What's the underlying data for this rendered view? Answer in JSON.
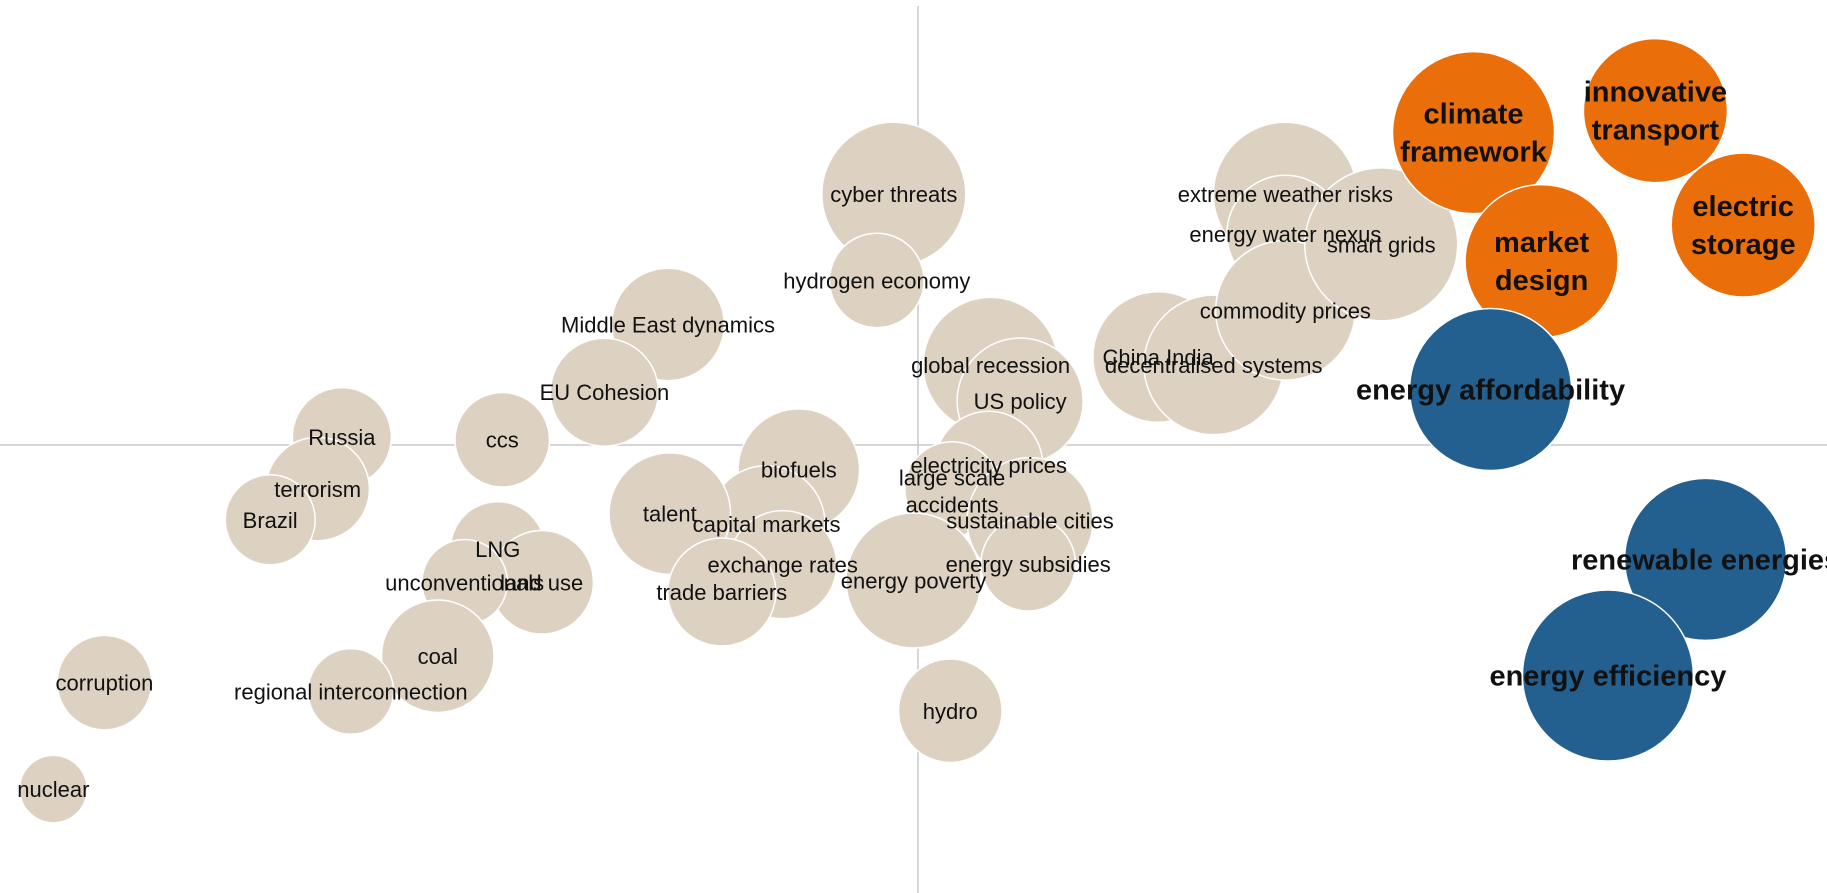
{
  "chart_data": {
    "type": "scatter",
    "title": "",
    "xlabel": "",
    "ylabel": "",
    "xlim": [
      -10,
      10
    ],
    "ylim": [
      -5,
      5
    ],
    "grid": false,
    "legend": "none",
    "colors": {
      "neutral": "#DDD2C2",
      "highlight": "#EA6E0A",
      "focus": "#23608F"
    },
    "points": [
      {
        "label": "cyber threats",
        "x": -0.27,
        "y": 2.85,
        "size": 1.6,
        "group": "neutral"
      },
      {
        "label": "hydrogen economy",
        "x": -0.46,
        "y": 1.87,
        "size": 1.05,
        "group": "neutral"
      },
      {
        "label": "Middle East dynamics",
        "x": -2.79,
        "y": 1.37,
        "size": 1.25,
        "group": "neutral"
      },
      {
        "label": "EU Cohesion",
        "x": -3.5,
        "y": 0.6,
        "size": 1.2,
        "group": "neutral"
      },
      {
        "label": "ccs",
        "x": -4.64,
        "y": 0.06,
        "size": 1.05,
        "group": "neutral"
      },
      {
        "label": "Russia",
        "x": -6.43,
        "y": 0.09,
        "size": 1.1,
        "group": "neutral"
      },
      {
        "label": "terrorism",
        "x": -6.7,
        "y": -0.5,
        "size": 1.15,
        "group": "neutral"
      },
      {
        "label": "Brazil",
        "x": -7.23,
        "y": -0.85,
        "size": 1.0,
        "group": "neutral"
      },
      {
        "label": "biofuels",
        "x": -1.33,
        "y": -0.28,
        "size": 1.35,
        "group": "neutral"
      },
      {
        "label": "capital markets",
        "x": -1.69,
        "y": -0.9,
        "size": 1.3,
        "group": "neutral"
      },
      {
        "label": "talent",
        "x": -2.77,
        "y": -0.78,
        "size": 1.35,
        "group": "neutral"
      },
      {
        "label": "exchange rates",
        "x": -1.51,
        "y": -1.36,
        "size": 1.2,
        "group": "neutral"
      },
      {
        "label": "trade barriers",
        "x": -2.19,
        "y": -1.67,
        "size": 1.2,
        "group": "neutral"
      },
      {
        "label": "LNG",
        "x": -4.69,
        "y": -1.18,
        "size": 1.05,
        "group": "neutral"
      },
      {
        "label": "land use",
        "x": -4.2,
        "y": -1.56,
        "size": 1.15,
        "group": "neutral"
      },
      {
        "label": "unconventionals",
        "x": -5.06,
        "y": -1.56,
        "size": 0.95,
        "group": "neutral"
      },
      {
        "label": "coal",
        "x": -5.36,
        "y": -2.4,
        "size": 1.25,
        "group": "neutral"
      },
      {
        "label": "regional interconnection",
        "x": -6.33,
        "y": -2.8,
        "size": 0.95,
        "group": "neutral"
      },
      {
        "label": "corruption",
        "x": -9.08,
        "y": -2.7,
        "size": 1.05,
        "group": "neutral"
      },
      {
        "label": "nuclear",
        "x": -9.65,
        "y": -3.91,
        "size": 0.75,
        "group": "neutral"
      },
      {
        "label": "global recession",
        "x": 0.81,
        "y": 0.91,
        "size": 1.5,
        "group": "neutral"
      },
      {
        "label": "US policy",
        "x": 1.14,
        "y": 0.5,
        "size": 1.4,
        "group": "neutral"
      },
      {
        "label": "electricity prices",
        "x": 0.79,
        "y": -0.23,
        "size": 1.2,
        "group": "neutral"
      },
      {
        "label": "large scale accidents",
        "x": 0.38,
        "y": -0.5,
        "size": 1.05,
        "group": "neutral"
      },
      {
        "label": "sustainable cities",
        "x": 1.25,
        "y": -0.86,
        "size": 1.4,
        "group": "neutral"
      },
      {
        "label": "energy subsidies",
        "x": 1.23,
        "y": -1.35,
        "size": 1.05,
        "group": "neutral"
      },
      {
        "label": "energy poverty",
        "x": -0.05,
        "y": -1.54,
        "size": 1.5,
        "group": "neutral"
      },
      {
        "label": "hydro",
        "x": 0.36,
        "y": -3.02,
        "size": 1.15,
        "group": "neutral"
      },
      {
        "label": "China India",
        "x": 2.68,
        "y": 1.0,
        "size": 1.45,
        "group": "neutral"
      },
      {
        "label": "decentralised systems",
        "x": 3.3,
        "y": 0.91,
        "size": 1.55,
        "group": "neutral"
      },
      {
        "label": "extreme weather risks",
        "x": 4.1,
        "y": 2.85,
        "size": 1.6,
        "group": "neutral"
      },
      {
        "label": "energy water nexus",
        "x": 4.1,
        "y": 2.4,
        "size": 1.3,
        "group": "neutral"
      },
      {
        "label": "commodity prices",
        "x": 4.1,
        "y": 1.53,
        "size": 1.55,
        "group": "neutral"
      },
      {
        "label": "smart grids",
        "x": 5.17,
        "y": 2.28,
        "size": 1.7,
        "group": "neutral"
      },
      {
        "label": "climate framework",
        "x": 6.2,
        "y": 3.55,
        "size": 1.8,
        "group": "highlight"
      },
      {
        "label": "innovative transport",
        "x": 8.23,
        "y": 3.8,
        "size": 1.6,
        "group": "highlight"
      },
      {
        "label": "electric storage",
        "x": 9.21,
        "y": 2.5,
        "size": 1.6,
        "group": "highlight"
      },
      {
        "label": "market design",
        "x": 6.96,
        "y": 2.09,
        "size": 1.7,
        "group": "highlight"
      },
      {
        "label": "energy affordability",
        "x": 6.39,
        "y": 0.63,
        "size": 1.8,
        "group": "focus"
      },
      {
        "label": "renewable energies",
        "x": 8.79,
        "y": -1.3,
        "size": 1.8,
        "group": "focus"
      },
      {
        "label": "energy efficiency",
        "x": 7.7,
        "y": -2.62,
        "size": 1.9,
        "group": "focus"
      }
    ]
  }
}
